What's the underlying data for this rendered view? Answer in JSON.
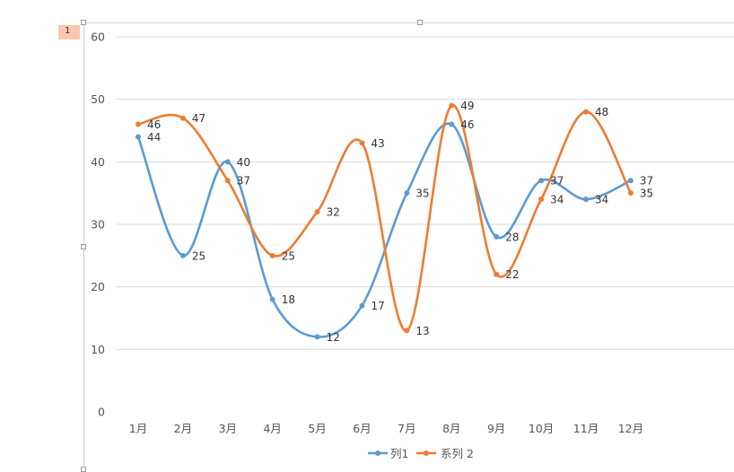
{
  "page_badge": "1",
  "chart_data": {
    "type": "line",
    "categories": [
      "1月",
      "2月",
      "3月",
      "4月",
      "5月",
      "6月",
      "7月",
      "8月",
      "9月",
      "10月",
      "11月",
      "12月"
    ],
    "series": [
      {
        "name": "列1",
        "color": "#5b9bd5",
        "values": [
          44,
          25,
          40,
          18,
          12,
          17,
          35,
          46,
          28,
          37,
          34,
          37
        ]
      },
      {
        "name": "系列 2",
        "color": "#ed7d31",
        "values": [
          46,
          47,
          37,
          25,
          32,
          43,
          13,
          49,
          22,
          34,
          48,
          35
        ]
      }
    ],
    "ylim": [
      0,
      60
    ],
    "yticks": [
      0,
      10,
      20,
      30,
      40,
      50,
      60
    ],
    "grid": true,
    "smooth": true,
    "data_labels": true,
    "legend_position": "bottom"
  }
}
